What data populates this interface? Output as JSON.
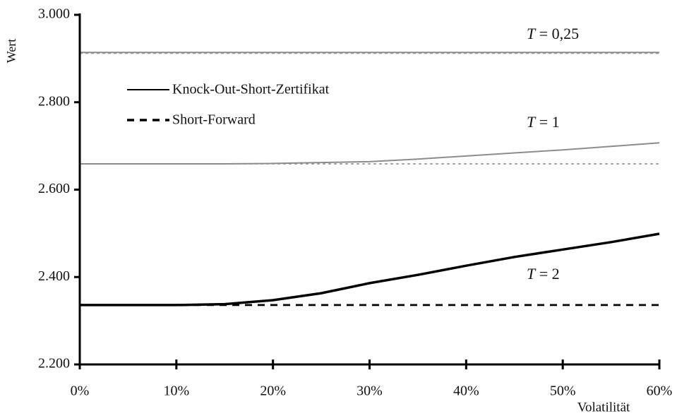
{
  "chart_data": {
    "type": "line",
    "y_label": "Wert",
    "x_label": "Volatilität",
    "x": [
      0,
      5,
      10,
      15,
      20,
      25,
      30,
      35,
      40,
      45,
      50,
      55,
      60
    ],
    "xlim": [
      0,
      60
    ],
    "xticks": [
      {
        "value": 0,
        "label": "0%"
      },
      {
        "value": 10,
        "label": "10%"
      },
      {
        "value": 20,
        "label": "20%"
      },
      {
        "value": 30,
        "label": "30%"
      },
      {
        "value": 40,
        "label": "40%"
      },
      {
        "value": 50,
        "label": "50%"
      },
      {
        "value": 60,
        "label": "60%"
      }
    ],
    "ylim": [
      2200,
      3000
    ],
    "yticks": [
      {
        "value": 2200,
        "label": "2.200"
      },
      {
        "value": 2400,
        "label": "2.400"
      },
      {
        "value": 2600,
        "label": "2.600"
      },
      {
        "value": 2800,
        "label": "2.800"
      },
      {
        "value": 3000,
        "label": "3.000"
      }
    ],
    "legend": [
      "Knock-Out-Short-Zertifikat",
      "Short-Forward"
    ],
    "curves": [
      {
        "label": "T = 0,25",
        "color": "#8c8c8c",
        "width": 2,
        "certificate": [
          2914,
          2914,
          2914,
          2914,
          2914,
          2914,
          2914,
          2914,
          2914,
          2914,
          2914,
          2914,
          2914
        ],
        "forward": [
          2912,
          2912,
          2912,
          2912,
          2912,
          2912,
          2912,
          2912,
          2912,
          2912,
          2912,
          2912,
          2912
        ]
      },
      {
        "label": "T = 1",
        "color": "#8c8c8c",
        "width": 2,
        "certificate": [
          2659,
          2659,
          2659,
          2659,
          2660,
          2662,
          2664,
          2670,
          2677,
          2684,
          2691,
          2699,
          2707
        ],
        "forward": [
          2659,
          2659,
          2659,
          2659,
          2659,
          2659,
          2659,
          2659,
          2659,
          2659,
          2659,
          2659,
          2659
        ]
      },
      {
        "label": "T = 2",
        "color": "#000000",
        "width": 3.5,
        "certificate": [
          2336,
          2336,
          2336,
          2338,
          2347,
          2363,
          2386,
          2405,
          2426,
          2446,
          2463,
          2480,
          2499
        ],
        "forward": [
          2336,
          2336,
          2336,
          2336,
          2336,
          2336,
          2336,
          2336,
          2336,
          2336,
          2336,
          2336,
          2336
        ]
      }
    ]
  }
}
